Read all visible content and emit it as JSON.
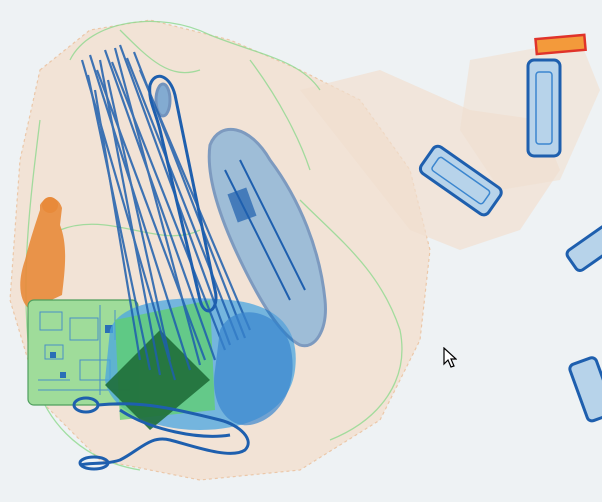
{
  "scan_view": {
    "description_free": true,
    "colors": {
      "background": "#eef2f4",
      "organic": "#e9a56b",
      "organic_light": "#f2c7a0",
      "mixed": "#6fcf6f",
      "inorganic": "#1e5fae",
      "inorganic_light": "#3b86cf",
      "dense_green": "#1f7a3c",
      "highlight_box": "#e0332a",
      "highlight_fill": "#f39a3b"
    },
    "cursor": {
      "icon": "mouse-pointer-icon"
    }
  }
}
